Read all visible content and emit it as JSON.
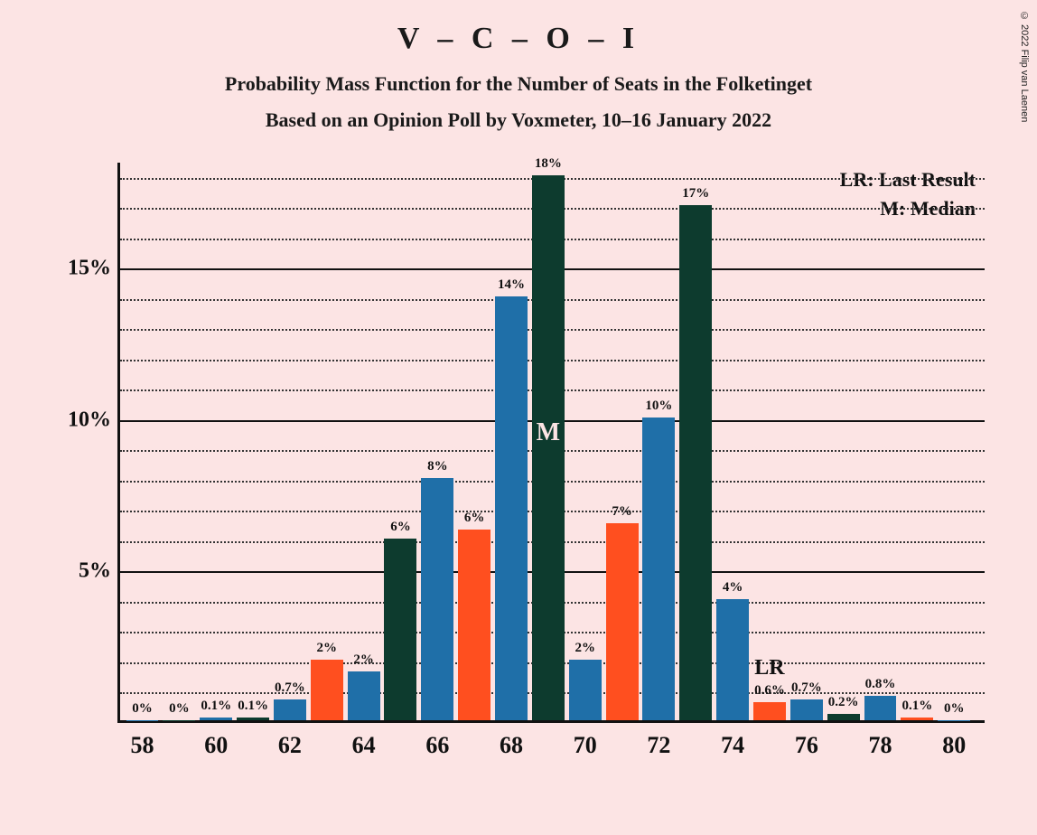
{
  "copyright": "© 2022 Filip van Laenen",
  "title": "V – C – O – I",
  "subtitle1": "Probability Mass Function for the Number of Seats in the Folketinget",
  "subtitle2": "Based on an Opinion Poll by Voxmeter, 10–16 January 2022",
  "legend": {
    "lr": "LR: Last Result",
    "m": "M: Median"
  },
  "chart": {
    "type": "bar",
    "background_color": "#fce4e4",
    "axis_color": "#111111",
    "grid_dotted_color": "#333333",
    "ylim": [
      0,
      18.5
    ],
    "ymajor_ticks": [
      5,
      10,
      15
    ],
    "ymajor_labels": [
      "5%",
      "10%",
      "15%"
    ],
    "yminor_step": 1,
    "x_range": [
      58,
      80
    ],
    "x_tick_step": 2,
    "x_tick_labels": [
      "58",
      "60",
      "62",
      "64",
      "66",
      "68",
      "70",
      "72",
      "74",
      "76",
      "78",
      "80"
    ],
    "bar_colors": {
      "blue": "#1f6fa8",
      "green": "#0d3b2e",
      "orange": "#ff4f1f"
    },
    "bar_width_ratio": 0.88,
    "median_seat": 69,
    "median_label": "M",
    "lr_seat": 75,
    "lr_label": "LR",
    "bars": [
      {
        "x": 58,
        "v": 0,
        "label": "0%",
        "color": "blue"
      },
      {
        "x": 59,
        "v": 0,
        "label": "0%",
        "color": "green"
      },
      {
        "x": 60,
        "v": 0.1,
        "label": "0.1%",
        "color": "blue"
      },
      {
        "x": 61,
        "v": 0.1,
        "label": "0.1%",
        "color": "green"
      },
      {
        "x": 62,
        "v": 0.7,
        "label": "0.7%",
        "color": "blue"
      },
      {
        "x": 63,
        "v": 2,
        "label": "2%",
        "color": "orange"
      },
      {
        "x": 64,
        "v": 1.6,
        "label": "2%",
        "color": "blue"
      },
      {
        "x": 65,
        "v": 6,
        "label": "6%",
        "color": "green"
      },
      {
        "x": 66,
        "v": 8,
        "label": "8%",
        "color": "blue"
      },
      {
        "x": 67,
        "v": 6.3,
        "label": "6%",
        "color": "orange"
      },
      {
        "x": 68,
        "v": 14,
        "label": "14%",
        "color": "blue"
      },
      {
        "x": 69,
        "v": 18,
        "label": "18%",
        "color": "green"
      },
      {
        "x": 70,
        "v": 2,
        "label": "2%",
        "color": "blue"
      },
      {
        "x": 71,
        "v": 6.5,
        "label": "7%",
        "color": "orange"
      },
      {
        "x": 72,
        "v": 10,
        "label": "10%",
        "color": "blue"
      },
      {
        "x": 73,
        "v": 17,
        "label": "17%",
        "color": "green"
      },
      {
        "x": 74,
        "v": 4,
        "label": "4%",
        "color": "blue"
      },
      {
        "x": 75,
        "v": 0.6,
        "label": "0.6%",
        "color": "orange"
      },
      {
        "x": 76,
        "v": 0.7,
        "label": "0.7%",
        "color": "blue"
      },
      {
        "x": 77,
        "v": 0.2,
        "label": "0.2%",
        "color": "green"
      },
      {
        "x": 78,
        "v": 0.8,
        "label": "0.8%",
        "color": "blue"
      },
      {
        "x": 79,
        "v": 0.1,
        "label": "0.1%",
        "color": "orange"
      },
      {
        "x": 80,
        "v": 0,
        "label": "0%",
        "color": "blue"
      }
    ]
  }
}
